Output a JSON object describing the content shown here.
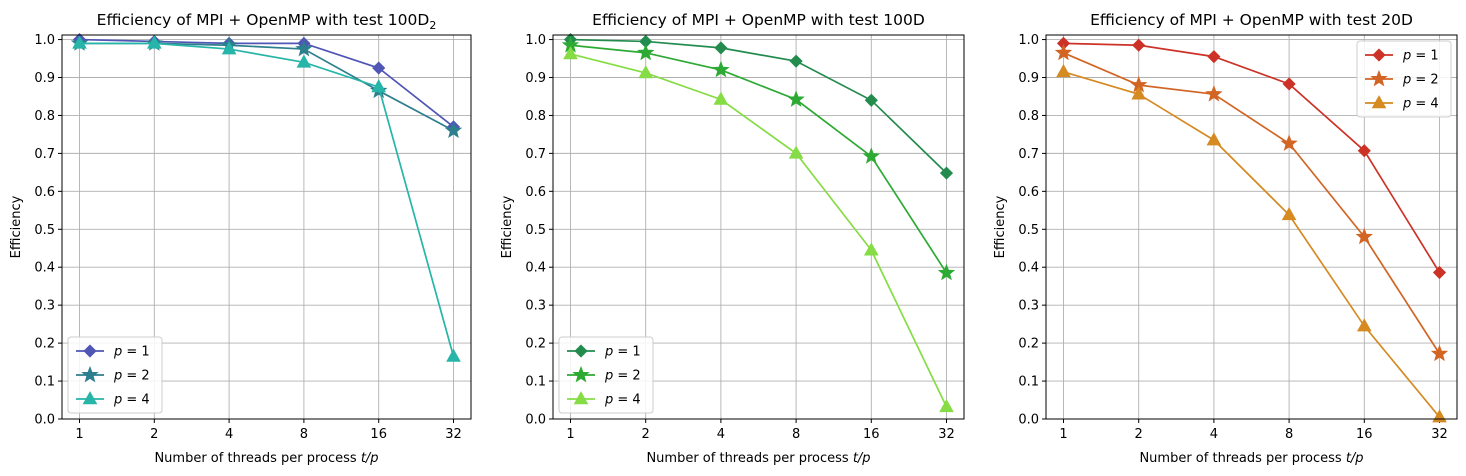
{
  "chart_data": [
    {
      "type": "line",
      "title": "Efficiency of MPI + OpenMP with test 100D",
      "title_subscript": "2",
      "xlabel": "Number of threads per process t/p",
      "ylabel": "Efficiency",
      "x": [
        "1",
        "2",
        "4",
        "8",
        "16",
        "32"
      ],
      "ylim": [
        0,
        1.0
      ],
      "yticks": [
        "0.0",
        "0.1",
        "0.2",
        "0.3",
        "0.4",
        "0.5",
        "0.6",
        "0.7",
        "0.8",
        "0.9",
        "1.0"
      ],
      "grid": true,
      "legend_position": "lower-left",
      "series": [
        {
          "name": "p = 1",
          "marker": "diamond",
          "color": "#4f56b5",
          "values": [
            1.0,
            0.995,
            0.99,
            0.99,
            0.925,
            0.77
          ]
        },
        {
          "name": "p = 2",
          "marker": "star",
          "color": "#2e7f8e",
          "values": [
            0.99,
            0.99,
            0.985,
            0.975,
            0.865,
            0.76
          ]
        },
        {
          "name": "p = 4",
          "marker": "triangle",
          "color": "#26b5a8",
          "values": [
            0.99,
            0.99,
            0.975,
            0.94,
            0.875,
            0.165
          ]
        }
      ]
    },
    {
      "type": "line",
      "title": "Efficiency of MPI + OpenMP with test 100D",
      "xlabel": "Number of threads per process t/p",
      "ylabel": "Efficiency",
      "x": [
        "1",
        "2",
        "4",
        "8",
        "16",
        "32"
      ],
      "ylim": [
        0,
        1.0
      ],
      "yticks": [
        "0.0",
        "0.1",
        "0.2",
        "0.3",
        "0.4",
        "0.5",
        "0.6",
        "0.7",
        "0.8",
        "0.9",
        "1.0"
      ],
      "grid": true,
      "legend_position": "lower-left",
      "series": [
        {
          "name": "p = 1",
          "marker": "diamond",
          "color": "#238b4e",
          "values": [
            1.0,
            0.995,
            0.978,
            0.943,
            0.84,
            0.648
          ]
        },
        {
          "name": "p = 2",
          "marker": "star",
          "color": "#2daa33",
          "values": [
            0.985,
            0.965,
            0.92,
            0.842,
            0.692,
            0.385
          ]
        },
        {
          "name": "p = 4",
          "marker": "triangle",
          "color": "#86dc44",
          "values": [
            0.962,
            0.912,
            0.842,
            0.7,
            0.445,
            0.032
          ]
        }
      ]
    },
    {
      "type": "line",
      "title": "Efficiency of MPI + OpenMP with test 20D",
      "xlabel": "Number of threads per process t/p",
      "ylabel": "Efficiency",
      "x": [
        "1",
        "2",
        "4",
        "8",
        "16",
        "32"
      ],
      "ylim": [
        0,
        1.0
      ],
      "yticks": [
        "0.0",
        "0.1",
        "0.2",
        "0.3",
        "0.4",
        "0.5",
        "0.6",
        "0.7",
        "0.8",
        "0.9",
        "1.0"
      ],
      "grid": true,
      "legend_position": "upper-right",
      "series": [
        {
          "name": "p = 1",
          "marker": "diamond",
          "color": "#cc3226",
          "values": [
            0.99,
            0.985,
            0.955,
            0.883,
            0.707,
            0.386
          ]
        },
        {
          "name": "p = 2",
          "marker": "star",
          "color": "#d36524",
          "values": [
            0.965,
            0.88,
            0.856,
            0.726,
            0.48,
            0.172
          ]
        },
        {
          "name": "p = 4",
          "marker": "triangle",
          "color": "#d58a22",
          "values": [
            0.915,
            0.856,
            0.735,
            0.538,
            0.245,
            0.005
          ]
        }
      ]
    }
  ]
}
